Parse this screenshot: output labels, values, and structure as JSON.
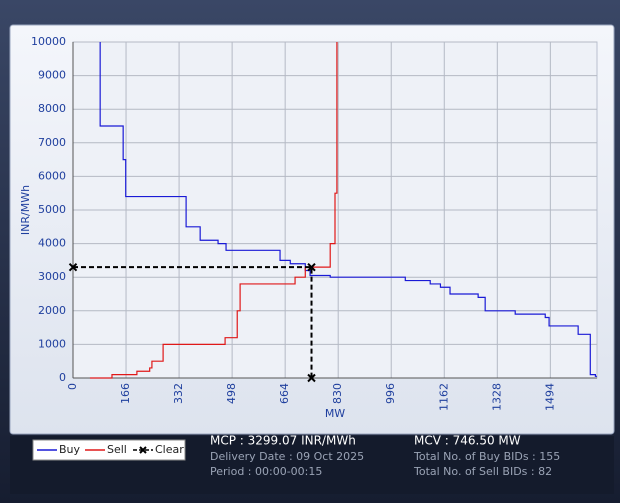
{
  "chart_data": {
    "type": "line",
    "x_label": "MW",
    "y_label": "INR/MWh",
    "xlim": [
      0,
      1640
    ],
    "ylim": [
      0,
      10000
    ],
    "xticks": [
      0,
      166,
      332,
      498,
      664,
      830,
      996,
      1162,
      1328,
      1494
    ],
    "yticks": [
      0,
      1000,
      2000,
      3000,
      4000,
      5000,
      6000,
      7000,
      8000,
      9000,
      10000
    ],
    "grid": true,
    "series": [
      {
        "name": "Buy",
        "color": "#1a1ad6",
        "x": [
          85,
          85,
          157,
          157,
          165,
          165,
          354,
          354,
          398,
          398,
          454,
          454,
          479,
          479,
          648,
          648,
          680,
          680,
          727,
          727,
          742,
          742,
          805,
          805,
          1040,
          1040,
          1118,
          1118,
          1150,
          1150,
          1180,
          1180,
          1268,
          1268,
          1290,
          1290,
          1384,
          1384,
          1478,
          1478,
          1490,
          1490,
          1581,
          1581,
          1619,
          1619,
          1635,
          1635,
          1640
        ],
        "values": [
          10000,
          7500,
          7500,
          6500,
          6500,
          5400,
          5400,
          4500,
          4500,
          4100,
          4100,
          4000,
          4000,
          3800,
          3800,
          3500,
          3500,
          3400,
          3400,
          3200,
          3200,
          3050,
          3050,
          3000,
          3000,
          2900,
          2900,
          2800,
          2800,
          2700,
          2700,
          2500,
          2500,
          2400,
          2400,
          2000,
          2000,
          1900,
          1900,
          1800,
          1800,
          1550,
          1550,
          1300,
          1300,
          100,
          100,
          50,
          50
        ]
      },
      {
        "name": "Sell",
        "color": "#e01818",
        "x": [
          53,
          122,
          122,
          200,
          200,
          240,
          240,
          247,
          247,
          282,
          282,
          476,
          476,
          514,
          514,
          523,
          523,
          695,
          695,
          727,
          727,
          805,
          805,
          820,
          820,
          826,
          826
        ],
        "values": [
          0,
          0,
          100,
          100,
          200,
          200,
          300,
          300,
          500,
          500,
          1000,
          1000,
          1200,
          1200,
          2000,
          2000,
          2800,
          2800,
          3000,
          3000,
          3300,
          3300,
          4000,
          4000,
          5500,
          5500,
          10000
        ]
      },
      {
        "name": "Clear",
        "color": "#000000",
        "dashed": true,
        "markers": true,
        "x": [
          0,
          746.5,
          746.5
        ],
        "values": [
          3299.07,
          3299.07,
          0
        ]
      }
    ]
  },
  "info": {
    "mcp": "MCP : 3299.07 INR/MWh",
    "delivery_date": "Delivery Date : 09 Oct 2025",
    "period": "Period :  00:00-00:15",
    "mcv": "MCV : 746.50 MW",
    "buy_bids": "Total No. of Buy BIDs : 155",
    "sell_bids": "Total No. of Sell BIDs : 82"
  }
}
